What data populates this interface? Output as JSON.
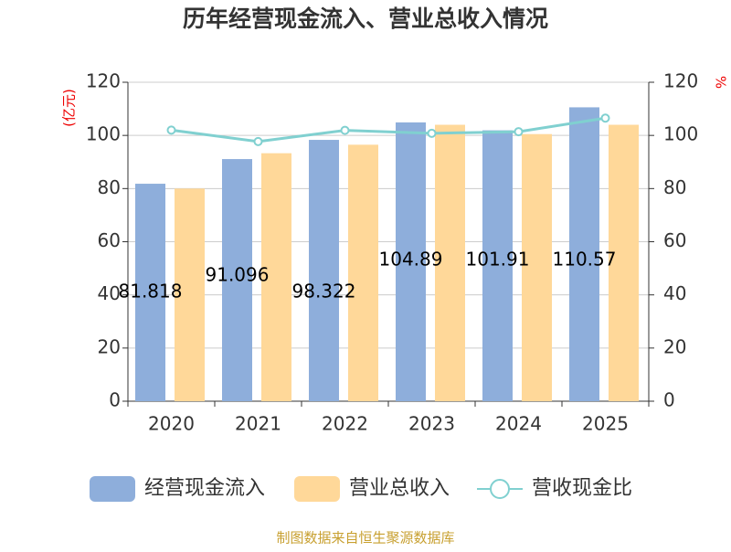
{
  "chart_data": {
    "type": "bar-line",
    "title": "历年经营现金流入、营业总收入情况",
    "y_label": "(亿元)",
    "y2_label": "%",
    "categories": [
      "2020",
      "2021",
      "2022",
      "2023",
      "2024",
      "2025"
    ],
    "series": [
      {
        "name": "经营现金流入",
        "color": "#8eaedb",
        "kind": "bar",
        "values": [
          81.818,
          91.096,
          98.322,
          104.89,
          101.91,
          110.57
        ]
      },
      {
        "name": "营业总收入",
        "color": "#ffd899",
        "kind": "bar",
        "values": [
          80,
          93.3,
          96.5,
          104,
          100.5,
          104
        ]
      },
      {
        "name": "营收现金比",
        "color": "#80d0d0",
        "kind": "line",
        "axis": "y2",
        "values": [
          102,
          97.7,
          101.9,
          100.8,
          101.4,
          106.5
        ]
      }
    ],
    "ylim": [
      0,
      120
    ],
    "yticks": [
      0,
      20,
      40,
      60,
      80,
      100,
      120
    ],
    "y2lim": [
      0,
      120
    ],
    "y2ticks": [
      0,
      20,
      40,
      60,
      80,
      100,
      120
    ],
    "grid": true,
    "source": "制图数据来自恒生聚源数据库"
  }
}
